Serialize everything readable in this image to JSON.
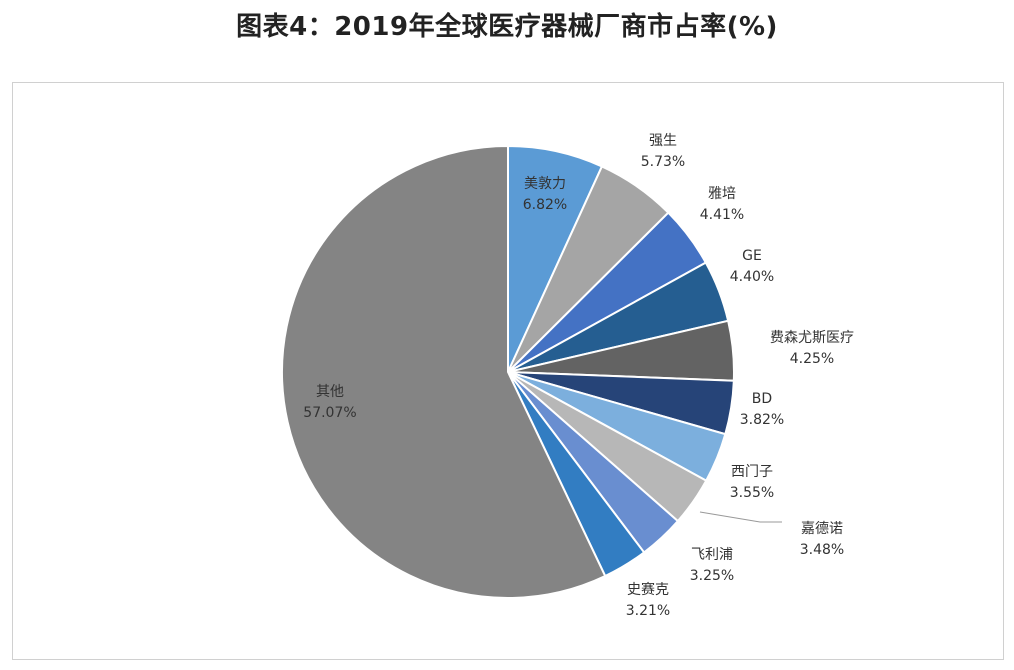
{
  "title": "图表4：2019年全球医疗器械厂商市占率(%)",
  "chart_data": {
    "type": "pie",
    "title": "图表4：2019年全球医疗器械厂商市占率(%)",
    "slices": [
      {
        "name": "美敦力",
        "value": 6.82,
        "label": "6.82%",
        "color": "#5b9bd5"
      },
      {
        "name": "强生",
        "value": 5.73,
        "label": "5.73%",
        "color": "#a5a5a5"
      },
      {
        "name": "雅培",
        "value": 4.41,
        "label": "4.41%",
        "color": "#4472c4"
      },
      {
        "name": "GE",
        "value": 4.4,
        "label": "4.40%",
        "color": "#255e91"
      },
      {
        "name": "费森尤斯医疗",
        "value": 4.25,
        "label": "4.25%",
        "color": "#636363"
      },
      {
        "name": "BD",
        "value": 3.82,
        "label": "3.82%",
        "color": "#264478"
      },
      {
        "name": "西门子",
        "value": 3.55,
        "label": "3.55%",
        "color": "#7cafdd"
      },
      {
        "name": "嘉德诺",
        "value": 3.48,
        "label": "3.48%",
        "color": "#b7b7b7"
      },
      {
        "name": "飞利浦",
        "value": 3.25,
        "label": "3.25%",
        "color": "#698ed0"
      },
      {
        "name": "史赛克",
        "value": 3.21,
        "label": "3.21%",
        "color": "#327dc2"
      },
      {
        "name": "其他",
        "value": 57.07,
        "label": "57.07%",
        "color": "#848484"
      }
    ]
  }
}
